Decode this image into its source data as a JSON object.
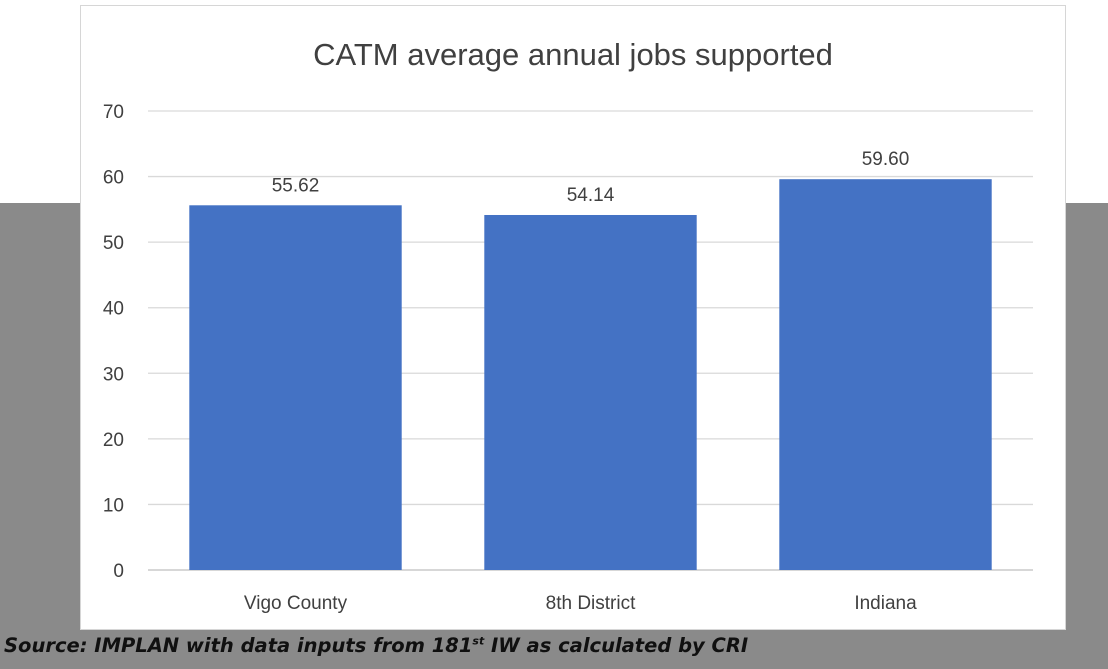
{
  "colors": {
    "bar": "#4472c4",
    "band": "#8a8a8a",
    "grid": "#d9d9d9",
    "text": "#404040"
  },
  "chart_data": {
    "type": "bar",
    "title": "CATM average annual jobs supported",
    "categories": [
      "Vigo County",
      "8th District",
      "Indiana"
    ],
    "values": [
      55.62,
      54.14,
      59.6
    ],
    "data_labels": [
      "55.62",
      "54.14",
      "59.60"
    ],
    "ylim": [
      0,
      70
    ],
    "yticks": [
      0,
      10,
      20,
      30,
      40,
      50,
      60,
      70
    ],
    "grid": true,
    "legend": "none",
    "xlabel": "",
    "ylabel": ""
  },
  "source": {
    "prefix": "Source: IMPLAN with data inputs from 181",
    "superscript": "st",
    "suffix": " IW as calculated by CRI"
  }
}
